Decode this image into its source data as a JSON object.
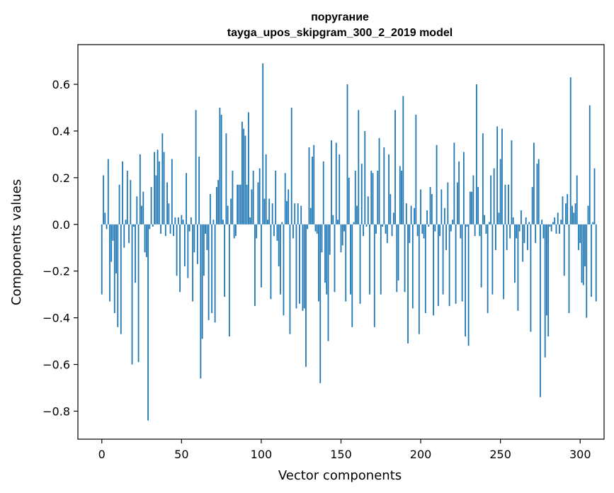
{
  "chart_data": {
    "type": "bar",
    "title_line1": "поругание",
    "title_line2": "tayga_upos_skipgram_300_2_2019 model",
    "xlabel": "Vector components",
    "ylabel": "Components values",
    "xlim": [
      -15,
      315
    ],
    "ylim": [
      -0.92,
      0.77
    ],
    "xticks": [
      0,
      50,
      100,
      150,
      200,
      250,
      300
    ],
    "xtick_labels": [
      "0",
      "50",
      "100",
      "150",
      "200",
      "250",
      "300"
    ],
    "yticks": [
      -0.8,
      -0.6,
      -0.4,
      -0.2,
      0.0,
      0.2,
      0.4,
      0.6
    ],
    "ytick_labels": [
      "−0.8",
      "−0.6",
      "−0.4",
      "−0.2",
      "0.0",
      "0.2",
      "0.4",
      "0.6"
    ],
    "color": "#1f77b4",
    "grid": false,
    "values": [
      -0.3,
      0.21,
      0.05,
      -0.02,
      0.28,
      -0.33,
      -0.16,
      -0.07,
      -0.38,
      -0.21,
      -0.44,
      0.17,
      -0.47,
      0.27,
      -0.1,
      0.02,
      0.23,
      -0.08,
      0.19,
      -0.6,
      -0.01,
      -0.25,
      0.12,
      -0.59,
      0.3,
      0.08,
      0.14,
      -0.12,
      -0.14,
      -0.84,
      -0.02,
      0.16,
      -0.01,
      0.31,
      0.21,
      0.32,
      0.27,
      -0.04,
      0.39,
      0.31,
      -0.05,
      0.18,
      0.09,
      -0.04,
      0.28,
      -0.05,
      0.03,
      -0.22,
      0.03,
      -0.29,
      0.04,
      0.02,
      -0.18,
      0.22,
      -0.23,
      -0.03,
      0.03,
      -0.33,
      -0.12,
      0.49,
      -0.17,
      0.29,
      -0.66,
      -0.49,
      -0.22,
      -0.04,
      -0.11,
      -0.41,
      0.13,
      -0.38,
      0.02,
      -0.42,
      0.16,
      0.19,
      0.5,
      0.47,
      0.02,
      -0.31,
      0.39,
      0.08,
      -0.48,
      0.11,
      0.23,
      -0.06,
      -0.05,
      0.17,
      0.17,
      0.17,
      0.44,
      0.41,
      0.38,
      0.17,
      0.48,
      0.03,
      0.15,
      0.23,
      -0.35,
      -0.06,
      0.18,
      0.24,
      -0.27,
      0.69,
      0.11,
      0.3,
      0.02,
      0.11,
      -0.32,
      0.09,
      -0.05,
      0.23,
      -0.07,
      -0.18,
      -0.3,
      0.01,
      -0.39,
      0.22,
      0.1,
      0.15,
      -0.47,
      0.5,
      -0.06,
      0.09,
      -0.36,
      0.09,
      -0.34,
      0.08,
      -0.37,
      -0.36,
      -0.61,
      -0.02,
      0.33,
      0.07,
      0.29,
      0.34,
      -0.03,
      -0.04,
      -0.33,
      -0.68,
      -0.12,
      0.27,
      -0.25,
      -0.3,
      -0.5,
      -0.13,
      0.36,
      0.04,
      -0.29,
      0.35,
      0.02,
      0.3,
      -0.12,
      -0.09,
      -0.03,
      -0.33,
      0.6,
      0.2,
      -0.3,
      -0.44,
      0.01,
      0.23,
      0.08,
      0.49,
      -0.34,
      0.26,
      -0.05,
      0.4,
      -0.01,
      0.12,
      -0.3,
      0.23,
      0.22,
      -0.44,
      -0.04,
      0.23,
      0.37,
      -0.3,
      -0.01,
      0.33,
      -0.04,
      -0.08,
      0.3,
      0.13,
      -0.05,
      0.05,
      0.49,
      -0.29,
      -0.24,
      0.25,
      0.23,
      0.55,
      -0.29,
      0.09,
      -0.51,
      -0.08,
      0.08,
      -0.36,
      0.07,
      0.47,
      -0.05,
      -0.47,
      0.15,
      -0.04,
      -0.06,
      -0.38,
      0.06,
      -0.01,
      0.16,
      0.13,
      -0.39,
      -0.03,
      0.34,
      -0.35,
      -0.05,
      0.15,
      -0.3,
      0.07,
      -0.11,
      0.18,
      -0.35,
      -0.03,
      0.02,
      0.35,
      -0.34,
      0.18,
      0.27,
      -0.06,
      -0.33,
      0.31,
      -0.48,
      -0.01,
      -0.52,
      0.14,
      0.14,
      0.21,
      -0.05,
      0.6,
      0.16,
      -0.05,
      -0.27,
      0.39,
      0.04,
      -0.04,
      -0.38,
      0.01,
      0.21,
      -0.3,
      0.24,
      -0.11,
      0.42,
      0.05,
      0.28,
      0.41,
      -0.32,
      0.17,
      -0.11,
      0.17,
      -0.06,
      0.36,
      0.03,
      -0.25,
      -0.06,
      -0.37,
      -0.03,
      0.06,
      -0.16,
      -0.08,
      0.03,
      -0.11,
      0.01,
      -0.46,
      0.16,
      0.35,
      -0.08,
      0.26,
      0.28,
      -0.74,
      0.02,
      -0.06,
      -0.57,
      -0.39,
      -0.48,
      -0.01,
      -0.03,
      0.01,
      0.03,
      -0.04,
      0.05,
      -0.04,
      0.02,
      0.12,
      -0.22,
      0.09,
      0.13,
      -0.38,
      0.63,
      0.08,
      0.05,
      0.09,
      0.21,
      -0.11,
      -0.08,
      -0.25,
      -0.26,
      -0.18,
      -0.4,
      0.08,
      0.51,
      -0.31,
      0.01,
      0.24,
      -0.33
    ]
  }
}
